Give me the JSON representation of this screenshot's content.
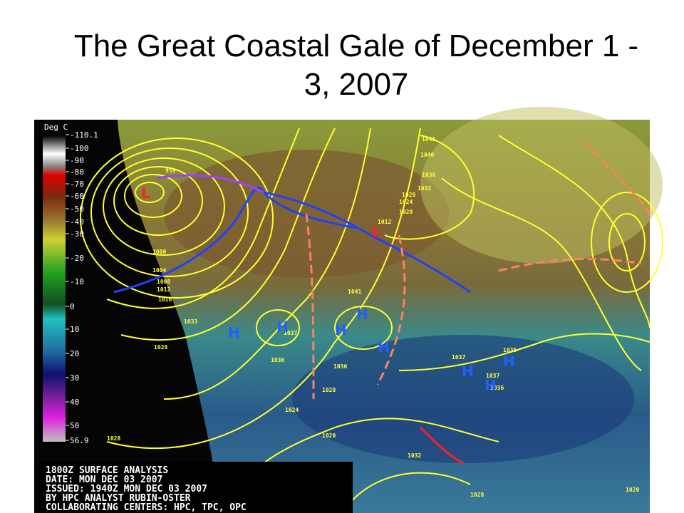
{
  "slide": {
    "title": "The Great Coastal Gale of December 1 - 3, 2007"
  },
  "map": {
    "color_scale": {
      "unit": "Deg C",
      "labels": [
        "-110.1",
        "-100",
        "-90",
        "-80",
        "-70",
        "-60",
        "-50",
        "-40",
        "-30",
        "-20",
        "-10",
        "0",
        "10",
        "20",
        "30",
        "40",
        "50",
        "56.9"
      ]
    },
    "footer": [
      "1800Z SURFACE ANALYSIS",
      "DATE: MON DEC 03 2007",
      "ISSUED: 1940Z MON DEC 03 2007",
      "BY HPC ANALYST RUBIN-OSTER",
      "COLLABORATING CENTERS: HPC, TPC, OPC"
    ],
    "isobar_labels": [
      "959",
      "1041",
      "1040",
      "1036",
      "1032",
      "1028",
      "1024",
      "1020",
      "1012",
      "1000",
      "1004",
      "1008",
      "1012",
      "1016",
      "1028",
      "1033",
      "1037",
      "1041",
      "1036",
      "1036",
      "1028",
      "1024",
      "1020",
      "1032",
      "1037",
      "1035",
      "1037",
      "1036",
      "1028",
      "1020",
      "1028"
    ],
    "pressure_centers": [
      "L",
      "L",
      "H",
      "H",
      "H",
      "H",
      "H",
      "H",
      "H",
      "H"
    ]
  }
}
